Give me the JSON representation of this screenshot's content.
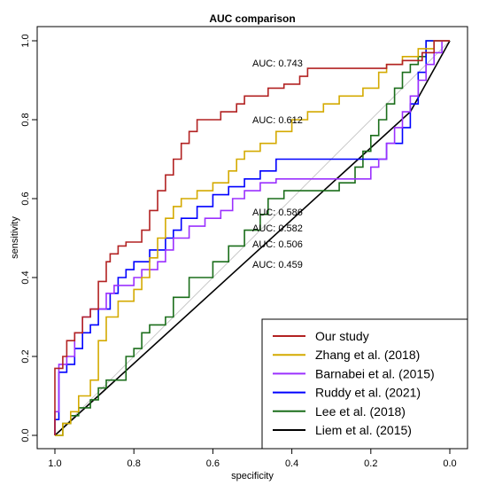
{
  "chart_data": {
    "type": "line",
    "title": "AUC comparison",
    "xlabel": "specificity",
    "ylabel": "sensitivity",
    "xlim": [
      1.0,
      0.0
    ],
    "ylim": [
      0.0,
      1.0
    ],
    "x_reversed": true,
    "x_ticks": [
      "1.0",
      "0.8",
      "0.6",
      "0.4",
      "0.2",
      "0.0"
    ],
    "y_ticks": [
      "0.0",
      "0.2",
      "0.4",
      "0.6",
      "0.8",
      "1.0"
    ],
    "grid": false,
    "legend_position": "bottom-right",
    "reference_line": {
      "from": [
        1.0,
        0.0
      ],
      "to": [
        0.0,
        1.0
      ],
      "color": "#c8c8c8"
    },
    "series": [
      {
        "name": "Our study",
        "color": "#b22222",
        "auc_label": "AUC: 0.743",
        "points": [
          [
            1.0,
            0.0
          ],
          [
            1.0,
            0.17
          ],
          [
            0.98,
            0.17
          ],
          [
            0.98,
            0.2
          ],
          [
            0.97,
            0.2
          ],
          [
            0.97,
            0.24
          ],
          [
            0.95,
            0.24
          ],
          [
            0.95,
            0.26
          ],
          [
            0.93,
            0.26
          ],
          [
            0.93,
            0.3
          ],
          [
            0.91,
            0.3
          ],
          [
            0.91,
            0.32
          ],
          [
            0.89,
            0.32
          ],
          [
            0.89,
            0.39
          ],
          [
            0.87,
            0.39
          ],
          [
            0.87,
            0.44
          ],
          [
            0.86,
            0.44
          ],
          [
            0.86,
            0.46
          ],
          [
            0.84,
            0.46
          ],
          [
            0.84,
            0.48
          ],
          [
            0.82,
            0.48
          ],
          [
            0.82,
            0.49
          ],
          [
            0.78,
            0.49
          ],
          [
            0.78,
            0.52
          ],
          [
            0.76,
            0.52
          ],
          [
            0.76,
            0.57
          ],
          [
            0.74,
            0.57
          ],
          [
            0.74,
            0.62
          ],
          [
            0.72,
            0.62
          ],
          [
            0.72,
            0.66
          ],
          [
            0.7,
            0.66
          ],
          [
            0.7,
            0.7
          ],
          [
            0.68,
            0.7
          ],
          [
            0.68,
            0.74
          ],
          [
            0.66,
            0.74
          ],
          [
            0.66,
            0.77
          ],
          [
            0.64,
            0.77
          ],
          [
            0.64,
            0.8
          ],
          [
            0.58,
            0.8
          ],
          [
            0.58,
            0.82
          ],
          [
            0.54,
            0.82
          ],
          [
            0.54,
            0.84
          ],
          [
            0.52,
            0.84
          ],
          [
            0.52,
            0.86
          ],
          [
            0.46,
            0.86
          ],
          [
            0.46,
            0.88
          ],
          [
            0.42,
            0.88
          ],
          [
            0.42,
            0.89
          ],
          [
            0.38,
            0.89
          ],
          [
            0.38,
            0.91
          ],
          [
            0.36,
            0.91
          ],
          [
            0.36,
            0.93
          ],
          [
            0.16,
            0.93
          ],
          [
            0.16,
            0.94
          ],
          [
            0.12,
            0.94
          ],
          [
            0.12,
            0.95
          ],
          [
            0.07,
            0.95
          ],
          [
            0.07,
            0.97
          ],
          [
            0.04,
            0.97
          ],
          [
            0.04,
            1.0
          ],
          [
            0.0,
            1.0
          ]
        ]
      },
      {
        "name": "Zhang et al. (2018)",
        "color": "#d4aa00",
        "auc_label": "AUC: 0.612",
        "points": [
          [
            1.0,
            0.0
          ],
          [
            0.98,
            0.0
          ],
          [
            0.98,
            0.03
          ],
          [
            0.96,
            0.03
          ],
          [
            0.96,
            0.06
          ],
          [
            0.94,
            0.06
          ],
          [
            0.94,
            0.1
          ],
          [
            0.91,
            0.1
          ],
          [
            0.91,
            0.14
          ],
          [
            0.89,
            0.14
          ],
          [
            0.89,
            0.24
          ],
          [
            0.87,
            0.24
          ],
          [
            0.87,
            0.3
          ],
          [
            0.84,
            0.3
          ],
          [
            0.84,
            0.34
          ],
          [
            0.8,
            0.34
          ],
          [
            0.8,
            0.37
          ],
          [
            0.78,
            0.37
          ],
          [
            0.78,
            0.4
          ],
          [
            0.76,
            0.4
          ],
          [
            0.76,
            0.45
          ],
          [
            0.74,
            0.45
          ],
          [
            0.74,
            0.5
          ],
          [
            0.72,
            0.5
          ],
          [
            0.72,
            0.55
          ],
          [
            0.7,
            0.55
          ],
          [
            0.7,
            0.58
          ],
          [
            0.68,
            0.58
          ],
          [
            0.68,
            0.6
          ],
          [
            0.64,
            0.6
          ],
          [
            0.64,
            0.62
          ],
          [
            0.6,
            0.62
          ],
          [
            0.6,
            0.64
          ],
          [
            0.56,
            0.64
          ],
          [
            0.56,
            0.67
          ],
          [
            0.54,
            0.67
          ],
          [
            0.54,
            0.7
          ],
          [
            0.52,
            0.7
          ],
          [
            0.52,
            0.72
          ],
          [
            0.48,
            0.72
          ],
          [
            0.48,
            0.74
          ],
          [
            0.44,
            0.74
          ],
          [
            0.44,
            0.77
          ],
          [
            0.4,
            0.77
          ],
          [
            0.4,
            0.8
          ],
          [
            0.36,
            0.8
          ],
          [
            0.36,
            0.82
          ],
          [
            0.32,
            0.82
          ],
          [
            0.32,
            0.84
          ],
          [
            0.28,
            0.84
          ],
          [
            0.28,
            0.86
          ],
          [
            0.22,
            0.86
          ],
          [
            0.22,
            0.88
          ],
          [
            0.18,
            0.88
          ],
          [
            0.18,
            0.92
          ],
          [
            0.16,
            0.92
          ],
          [
            0.16,
            0.94
          ],
          [
            0.12,
            0.94
          ],
          [
            0.12,
            0.96
          ],
          [
            0.08,
            0.96
          ],
          [
            0.08,
            0.98
          ],
          [
            0.04,
            0.98
          ],
          [
            0.04,
            1.0
          ],
          [
            0.0,
            1.0
          ]
        ]
      },
      {
        "name": "Barnabei et al. (2015)",
        "color": "#9b30ff",
        "auc_label": "AUC: 0.586",
        "points": [
          [
            1.0,
            0.0
          ],
          [
            1.0,
            0.06
          ],
          [
            0.99,
            0.06
          ],
          [
            0.99,
            0.18
          ],
          [
            0.97,
            0.18
          ],
          [
            0.97,
            0.2
          ],
          [
            0.95,
            0.2
          ],
          [
            0.95,
            0.26
          ],
          [
            0.93,
            0.26
          ],
          [
            0.93,
            0.3
          ],
          [
            0.91,
            0.3
          ],
          [
            0.91,
            0.32
          ],
          [
            0.87,
            0.32
          ],
          [
            0.87,
            0.36
          ],
          [
            0.85,
            0.36
          ],
          [
            0.85,
            0.38
          ],
          [
            0.8,
            0.38
          ],
          [
            0.8,
            0.4
          ],
          [
            0.78,
            0.4
          ],
          [
            0.78,
            0.42
          ],
          [
            0.74,
            0.42
          ],
          [
            0.74,
            0.44
          ],
          [
            0.72,
            0.44
          ],
          [
            0.72,
            0.47
          ],
          [
            0.7,
            0.47
          ],
          [
            0.7,
            0.5
          ],
          [
            0.66,
            0.5
          ],
          [
            0.66,
            0.53
          ],
          [
            0.62,
            0.53
          ],
          [
            0.62,
            0.55
          ],
          [
            0.58,
            0.55
          ],
          [
            0.58,
            0.57
          ],
          [
            0.55,
            0.57
          ],
          [
            0.55,
            0.6
          ],
          [
            0.52,
            0.6
          ],
          [
            0.52,
            0.62
          ],
          [
            0.48,
            0.62
          ],
          [
            0.48,
            0.64
          ],
          [
            0.44,
            0.64
          ],
          [
            0.44,
            0.65
          ],
          [
            0.2,
            0.65
          ],
          [
            0.2,
            0.68
          ],
          [
            0.18,
            0.68
          ],
          [
            0.18,
            0.7
          ],
          [
            0.16,
            0.7
          ],
          [
            0.16,
            0.74
          ],
          [
            0.14,
            0.74
          ],
          [
            0.14,
            0.78
          ],
          [
            0.12,
            0.78
          ],
          [
            0.12,
            0.82
          ],
          [
            0.1,
            0.82
          ],
          [
            0.1,
            0.86
          ],
          [
            0.08,
            0.86
          ],
          [
            0.08,
            0.9
          ],
          [
            0.06,
            0.9
          ],
          [
            0.06,
            0.94
          ],
          [
            0.04,
            0.94
          ],
          [
            0.04,
            0.97
          ],
          [
            0.02,
            0.97
          ],
          [
            0.02,
            1.0
          ],
          [
            0.0,
            1.0
          ]
        ]
      },
      {
        "name": "Ruddy et al. (2021)",
        "color": "#0000ff",
        "auc_label": "AUC: 0.582",
        "points": [
          [
            1.0,
            0.0
          ],
          [
            1.0,
            0.04
          ],
          [
            0.99,
            0.04
          ],
          [
            0.99,
            0.16
          ],
          [
            0.97,
            0.16
          ],
          [
            0.97,
            0.18
          ],
          [
            0.95,
            0.18
          ],
          [
            0.95,
            0.22
          ],
          [
            0.93,
            0.22
          ],
          [
            0.93,
            0.26
          ],
          [
            0.91,
            0.26
          ],
          [
            0.91,
            0.28
          ],
          [
            0.89,
            0.28
          ],
          [
            0.89,
            0.32
          ],
          [
            0.86,
            0.32
          ],
          [
            0.86,
            0.36
          ],
          [
            0.84,
            0.36
          ],
          [
            0.84,
            0.4
          ],
          [
            0.82,
            0.4
          ],
          [
            0.82,
            0.42
          ],
          [
            0.8,
            0.42
          ],
          [
            0.8,
            0.44
          ],
          [
            0.76,
            0.44
          ],
          [
            0.76,
            0.47
          ],
          [
            0.72,
            0.47
          ],
          [
            0.72,
            0.5
          ],
          [
            0.7,
            0.5
          ],
          [
            0.7,
            0.52
          ],
          [
            0.68,
            0.52
          ],
          [
            0.68,
            0.55
          ],
          [
            0.64,
            0.55
          ],
          [
            0.64,
            0.58
          ],
          [
            0.6,
            0.58
          ],
          [
            0.6,
            0.61
          ],
          [
            0.56,
            0.61
          ],
          [
            0.56,
            0.63
          ],
          [
            0.52,
            0.63
          ],
          [
            0.52,
            0.65
          ],
          [
            0.48,
            0.65
          ],
          [
            0.48,
            0.67
          ],
          [
            0.44,
            0.67
          ],
          [
            0.44,
            0.7
          ],
          [
            0.16,
            0.7
          ],
          [
            0.16,
            0.74
          ],
          [
            0.12,
            0.74
          ],
          [
            0.12,
            0.78
          ],
          [
            0.1,
            0.78
          ],
          [
            0.1,
            0.84
          ],
          [
            0.08,
            0.84
          ],
          [
            0.08,
            0.92
          ],
          [
            0.06,
            0.92
          ],
          [
            0.06,
            1.0
          ],
          [
            0.0,
            1.0
          ]
        ]
      },
      {
        "name": "Lee et al. (2018)",
        "color": "#1b6e1b",
        "auc_label": "AUC: 0.506",
        "points": [
          [
            1.0,
            0.0
          ],
          [
            0.98,
            0.0
          ],
          [
            0.98,
            0.03
          ],
          [
            0.96,
            0.03
          ],
          [
            0.96,
            0.05
          ],
          [
            0.94,
            0.05
          ],
          [
            0.94,
            0.07
          ],
          [
            0.91,
            0.07
          ],
          [
            0.91,
            0.09
          ],
          [
            0.89,
            0.09
          ],
          [
            0.89,
            0.12
          ],
          [
            0.87,
            0.12
          ],
          [
            0.87,
            0.14
          ],
          [
            0.82,
            0.14
          ],
          [
            0.82,
            0.2
          ],
          [
            0.8,
            0.2
          ],
          [
            0.8,
            0.22
          ],
          [
            0.78,
            0.22
          ],
          [
            0.78,
            0.26
          ],
          [
            0.76,
            0.26
          ],
          [
            0.76,
            0.28
          ],
          [
            0.72,
            0.28
          ],
          [
            0.72,
            0.3
          ],
          [
            0.7,
            0.3
          ],
          [
            0.7,
            0.35
          ],
          [
            0.66,
            0.35
          ],
          [
            0.66,
            0.4
          ],
          [
            0.6,
            0.4
          ],
          [
            0.6,
            0.44
          ],
          [
            0.56,
            0.44
          ],
          [
            0.56,
            0.48
          ],
          [
            0.52,
            0.48
          ],
          [
            0.52,
            0.52
          ],
          [
            0.48,
            0.52
          ],
          [
            0.48,
            0.56
          ],
          [
            0.46,
            0.56
          ],
          [
            0.46,
            0.6
          ],
          [
            0.42,
            0.6
          ],
          [
            0.42,
            0.62
          ],
          [
            0.28,
            0.62
          ],
          [
            0.28,
            0.64
          ],
          [
            0.24,
            0.64
          ],
          [
            0.24,
            0.68
          ],
          [
            0.22,
            0.68
          ],
          [
            0.22,
            0.72
          ],
          [
            0.2,
            0.72
          ],
          [
            0.2,
            0.76
          ],
          [
            0.18,
            0.76
          ],
          [
            0.18,
            0.8
          ],
          [
            0.16,
            0.8
          ],
          [
            0.16,
            0.84
          ],
          [
            0.14,
            0.84
          ],
          [
            0.14,
            0.88
          ],
          [
            0.12,
            0.88
          ],
          [
            0.12,
            0.92
          ],
          [
            0.1,
            0.92
          ],
          [
            0.1,
            0.94
          ],
          [
            0.08,
            0.94
          ],
          [
            0.08,
            0.96
          ],
          [
            0.06,
            0.96
          ],
          [
            0.06,
            1.0
          ],
          [
            0.0,
            1.0
          ]
        ]
      },
      {
        "name": "Liem et al. (2015)",
        "color": "#000000",
        "auc_label": "AUC: 0.459",
        "points": [
          [
            1.0,
            0.0
          ],
          [
            0.1,
            0.82
          ],
          [
            0.0,
            1.0
          ]
        ]
      }
    ]
  }
}
